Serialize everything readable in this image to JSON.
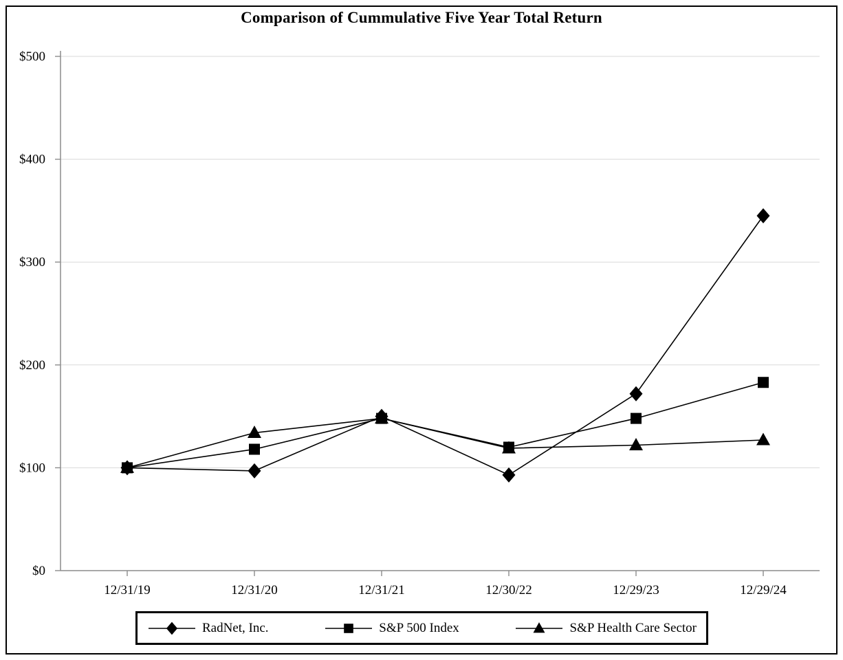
{
  "chart_data": {
    "type": "line",
    "title": "Comparison of Cummulative Five Year Total Return",
    "x": [
      "12/31/19",
      "12/31/20",
      "12/31/21",
      "12/30/22",
      "12/29/23",
      "12/29/24"
    ],
    "series": [
      {
        "name": "RadNet, Inc.",
        "marker": "diamond",
        "values": [
          100,
          97,
          150,
          93,
          172,
          345
        ]
      },
      {
        "name": "S&P 500 Index",
        "marker": "square",
        "values": [
          100,
          118,
          148,
          120,
          148,
          183
        ]
      },
      {
        "name": "S&P Health Care Sector",
        "marker": "triangle",
        "values": [
          100,
          134,
          148,
          119,
          122,
          127
        ]
      }
    ],
    "xlabel": "",
    "ylabel": "",
    "ylim": [
      0,
      500
    ],
    "ytick_step": 100,
    "ytick_labels": [
      "$0",
      "$100",
      "$200",
      "$300",
      "$400",
      "$500"
    ],
    "grid": true,
    "legend_position": "bottom",
    "draw_order": [
      2,
      0,
      1
    ],
    "colors": {
      "series": "#000000",
      "grid": "#d9d9d9",
      "axis": "#8c8c8c",
      "text": "#000000"
    }
  }
}
